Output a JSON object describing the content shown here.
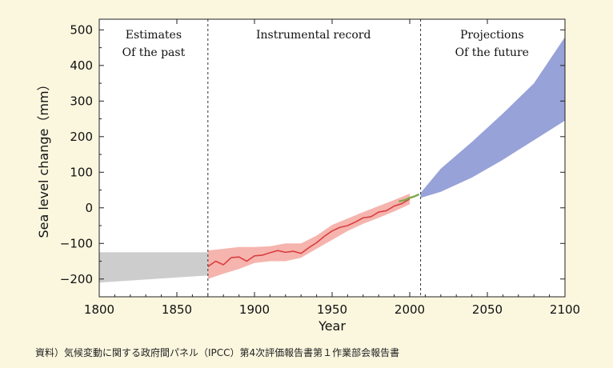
{
  "source_note": "資料）気候変動に関する政府間パネル（IPCC）第4次評価報告書第１作業部会報告書",
  "chart_data": {
    "type": "area",
    "xlabel": "Year",
    "ylabel": "Sea level change（mm）",
    "xlim": [
      1800,
      2100
    ],
    "ylim": [
      -250,
      530
    ],
    "xticks": [
      1800,
      1850,
      1900,
      1950,
      2000,
      2050,
      2100
    ],
    "yticks": [
      -200,
      -100,
      0,
      100,
      200,
      300,
      400,
      500
    ],
    "ytick_labels": [
      "−200",
      "−100",
      "0",
      "100",
      "200",
      "300",
      "400",
      "500"
    ],
    "dividers": [
      1870,
      2007
    ],
    "grid": false,
    "colors": {
      "past": "#c8c8c8",
      "instrumental_band": "#f4a7a0",
      "instrumental_line": "#d93f3f",
      "satellite": "#7ea84c",
      "projection": "#8c98d4"
    },
    "regions": [
      {
        "label_lines": [
          "Estimates",
          "Of the past"
        ],
        "x_center": 1835
      },
      {
        "label_lines": [
          "Instrumental record"
        ],
        "x_center": 1938
      },
      {
        "label_lines": [
          "Projections",
          "Of the future"
        ],
        "x_center": 2053
      }
    ],
    "series": [
      {
        "kind": "band",
        "x": [
          1800,
          1870
        ],
        "lower": [
          -210,
          -190
        ],
        "upper": [
          -125,
          -125
        ]
      },
      {
        "kind": "band",
        "x": [
          1870,
          1880,
          1890,
          1900,
          1910,
          1920,
          1930,
          1940,
          1950,
          1960,
          1970,
          1980,
          1990,
          2000
        ],
        "lower": [
          -200,
          -185,
          -172,
          -155,
          -150,
          -150,
          -140,
          -115,
          -90,
          -65,
          -45,
          -28,
          -10,
          10
        ],
        "upper": [
          -120,
          -115,
          -110,
          -110,
          -108,
          -100,
          -100,
          -78,
          -48,
          -30,
          -12,
          5,
          22,
          40
        ]
      },
      {
        "kind": "line",
        "x": [
          1870,
          1875,
          1880,
          1885,
          1890,
          1895,
          1900,
          1905,
          1910,
          1915,
          1920,
          1925,
          1930,
          1935,
          1940,
          1945,
          1950,
          1955,
          1960,
          1965,
          1970,
          1975,
          1980,
          1985,
          1990,
          1995,
          2000
        ],
        "values": [
          -165,
          -150,
          -160,
          -140,
          -138,
          -150,
          -135,
          -133,
          -126,
          -120,
          -125,
          -122,
          -128,
          -112,
          -98,
          -80,
          -65,
          -55,
          -50,
          -40,
          -28,
          -25,
          -12,
          -8,
          5,
          12,
          25
        ]
      },
      {
        "kind": "line",
        "x": [
          1993,
          1997,
          2000,
          2003,
          2006
        ],
        "values": [
          18,
          22,
          28,
          32,
          38
        ]
      },
      {
        "kind": "band",
        "x": [
          2007,
          2020,
          2040,
          2060,
          2080,
          2100
        ],
        "lower": [
          28,
          45,
          85,
          135,
          190,
          245
        ],
        "upper": [
          42,
          110,
          185,
          265,
          350,
          480
        ]
      }
    ]
  }
}
